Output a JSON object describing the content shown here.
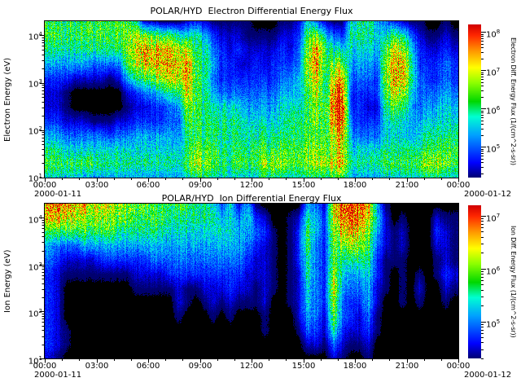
{
  "figure": {
    "background": "#ffffff",
    "text_color": "#000000"
  },
  "colormap_stops": [
    [
      0.0,
      [
        0,
        0,
        110
      ]
    ],
    [
      0.1,
      [
        0,
        0,
        255
      ]
    ],
    [
      0.28,
      [
        0,
        160,
        255
      ]
    ],
    [
      0.4,
      [
        0,
        255,
        210
      ]
    ],
    [
      0.5,
      [
        0,
        215,
        0
      ]
    ],
    [
      0.62,
      [
        140,
        255,
        0
      ]
    ],
    [
      0.72,
      [
        255,
        255,
        0
      ]
    ],
    [
      0.83,
      [
        255,
        150,
        0
      ]
    ],
    [
      0.93,
      [
        255,
        40,
        0
      ]
    ],
    [
      1.0,
      [
        210,
        0,
        0
      ]
    ]
  ],
  "chart_data": [
    {
      "type": "heatmap",
      "title": "POLAR/HYD  Electron Differential Energy Flux",
      "ylabel": "Electron Energy (eV)",
      "y_log10_range": [
        1.0,
        4.3
      ],
      "y_ticks": [
        {
          "m": "10",
          "e": "4"
        },
        {
          "m": "10",
          "e": "3"
        },
        {
          "m": "10",
          "e": "2"
        },
        {
          "m": "10",
          "e": "1"
        }
      ],
      "x_ticks": [
        "00:00",
        "03:00",
        "06:00",
        "09:00",
        "12:00",
        "15:00",
        "18:00",
        "21:00",
        "00:00"
      ],
      "x_minor_tick_hours": 1,
      "x_range_hours": [
        0,
        24
      ],
      "date_start": "2000-01-11",
      "date_end": "2000-01-12",
      "colorbar": {
        "label": "Electron Diff. Energy Flux (1/(cm^2-s-sr))",
        "ticks": [
          {
            "m": "10",
            "e": "8"
          },
          {
            "m": "10",
            "e": "7"
          },
          {
            "m": "10",
            "e": "6"
          },
          {
            "m": "10",
            "e": "5"
          }
        ],
        "log10_range": [
          4.2,
          8.2
        ]
      },
      "grid": {
        "hours_per_column": 0.5,
        "rows_log10_energy": [
          4.2,
          3.9,
          3.6,
          3.3,
          3.0,
          2.7,
          2.4,
          2.1,
          1.8,
          1.5,
          1.2,
          1.0
        ],
        "encoding": "one hex digit per row, top to bottom; 0 = below threshold (black), 1-15 map linearly over colorbar log10 range",
        "columns": [
          "887532235786",
          "887532235786",
          "887531124686",
          "887520024686",
          "887520024685",
          "887420014685",
          "887420014675",
          "887410013675",
          "887420024675",
          "899852124675",
          "7aba73235675",
          "29cb84235675",
          "29cc95335675",
          "18cca6335675",
          "18ccb7445675",
          "17bcb8545675",
          "26accb987786",
          "3778888889a7",
          "257777777897",
          "134545677886",
          "123334677786",
          "122334677776",
          "123234677896",
          "112234567786",
          "012334567886",
          "0122345678a7",
          "0123345678a7",
          "123345667896",
          "122345677886",
          "234455677886",
          "689a98888997",
          "49ccba9989a7",
          "2688778889a7",
          "1479bdedbab8",
          "1369cefecbc8",
          "676543345675",
          "776543334675",
          "776543234675",
          "565433234675",
          "468998766786",
          "38bccb976786",
          "27acca866786",
          "146776555786",
          "123344456796",
          "0123345678a7",
          "0123345678a7",
          "123445667896",
          "012334567886"
        ]
      }
    },
    {
      "type": "heatmap",
      "title": "POLAR/HYD  Ion Differential Energy Flux",
      "ylabel": "Ion Energy (eV)",
      "y_log10_range": [
        1.0,
        4.3
      ],
      "y_ticks": [
        {
          "m": "10",
          "e": "4"
        },
        {
          "m": "10",
          "e": "3"
        },
        {
          "m": "10",
          "e": "2"
        },
        {
          "m": "10",
          "e": "1"
        }
      ],
      "x_ticks": [
        "00:00",
        "03:00",
        "06:00",
        "09:00",
        "12:00",
        "15:00",
        "18:00",
        "21:00",
        "00:00"
      ],
      "x_minor_tick_hours": 1,
      "x_range_hours": [
        0,
        24
      ],
      "date_start": "2000-01-11",
      "date_end": "2000-01-12",
      "colorbar": {
        "label": "Ion Diff. Energy Flux (1/(cm^2-s-sr))",
        "ticks": [
          {
            "m": "10",
            "e": "7"
          },
          {
            "m": "10",
            "e": "6"
          },
          {
            "m": "10",
            "e": "5"
          }
        ],
        "log10_range": [
          4.3,
          7.2
        ]
      },
      "grid": {
        "hours_per_column": 0.5,
        "rows_log10_energy": [
          4.2,
          3.9,
          3.6,
          3.3,
          3.0,
          2.7,
          2.4,
          2.1,
          1.8,
          1.5,
          1.2,
          1.0
        ],
        "encoding": "one hex digit per row, top to bottom; 0 = below threshold (black), 1-15 map linearly over colorbar log10 range",
        "columns": [
          "dc8543333332",
          "dc8432222221",
          "db8421000110",
          "cb8421000000",
          "ca8521000000",
          "ba8521000000",
          "ba8531000000",
          "a98531000000",
          "a97531000000",
          "997531000000",
          "987532100000",
          "987532100000",
          "887542100000",
          "887542100000",
          "876543100000",
          "876543221000",
          "876543110000",
          "776543100000",
          "776543210000",
          "676543221000",
          "356543210000",
          "666543321000",
          "245543210000",
          "565432210000",
          "134322110000",
          "023222221100",
          "001111100000",
          "000000000000",
          "011111110000",
          "023332222100",
          "578877665420",
          "455444444320",
          "233333332210",
          "cba99aba9742",
          "edb976544321",
          "feca75433210",
          "edb975432210",
          "cb9876554321",
          "565433221100",
          "122211100000",
          "001110000000",
          "012211110000",
          "000000000000",
          "000001210000",
          "000000000000",
          "023211000000",
          "012223210000",
          "011112100000"
        ]
      }
    }
  ]
}
